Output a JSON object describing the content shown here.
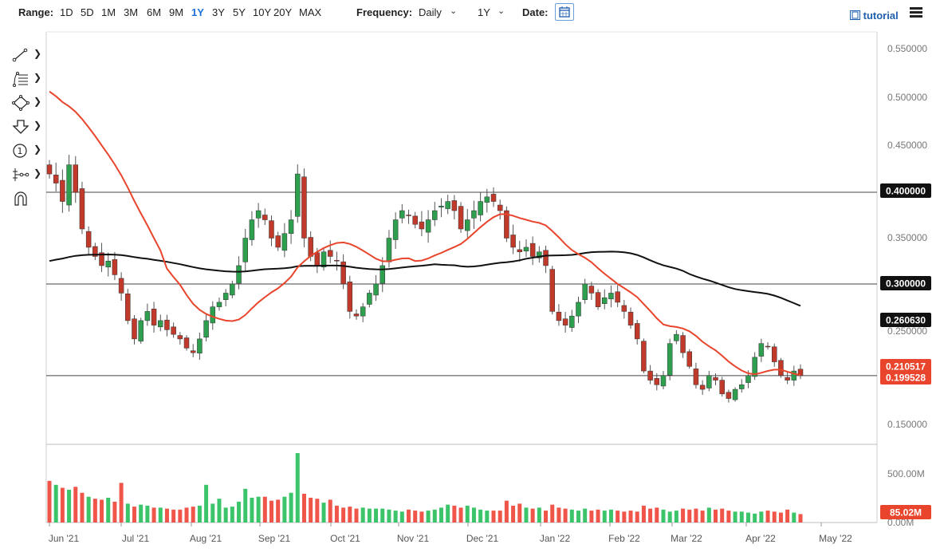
{
  "toolbar": {
    "range_label": "Range:",
    "ranges": [
      "1D",
      "5D",
      "1M",
      "3M",
      "6M",
      "9M",
      "1Y",
      "3Y",
      "5Y",
      "10Y",
      "20Y",
      "MAX"
    ],
    "active_range": "1Y",
    "frequency_label": "Frequency:",
    "frequency_value": "Daily",
    "period_value": "1Y",
    "date_label": "Date:",
    "tutorial_label": "tutorial",
    "accent_color": "#1e6fd9"
  },
  "drawing_tools": [
    {
      "name": "trend-line-icon"
    },
    {
      "name": "fibonacci-icon"
    },
    {
      "name": "shapes-icon"
    },
    {
      "name": "arrow-down-icon"
    },
    {
      "name": "annotation-icon"
    },
    {
      "name": "measure-icon"
    },
    {
      "name": "magnet-icon"
    }
  ],
  "chart_data": {
    "type": "candlestick",
    "x_ticks": [
      "Jun '21",
      "Jul '21",
      "Aug '21",
      "Sep '21",
      "Oct '21",
      "Nov '21",
      "Dec '21",
      "Jan '22",
      "Feb '22",
      "Mar '22",
      "Apr '22",
      "May '22"
    ],
    "price_ticks": [
      "0.550000",
      "0.500000",
      "0.450000",
      "0.400000",
      "0.350000",
      "0.300000",
      "0.250000",
      "0.150000"
    ],
    "price_range": [
      0.125,
      0.575
    ],
    "horizontal_levels": [
      0.4,
      0.3,
      0.2
    ],
    "level_labels": [
      "0.400000",
      "0.300000"
    ],
    "ma200_label": "0.260630",
    "ma50_label": "0.210517",
    "last_price_label": "0.199528",
    "ma200_color": "#111111",
    "ma50_color": "#e8452c",
    "up_color": "#2e9e4f",
    "down_color": "#c0392b",
    "closes": [
      0.42,
      0.41,
      0.39,
      0.43,
      0.4,
      0.36,
      0.34,
      0.33,
      0.32,
      0.325,
      0.31,
      0.29,
      0.26,
      0.24,
      0.26,
      0.27,
      0.255,
      0.26,
      0.25,
      0.245,
      0.24,
      0.23,
      0.225,
      0.24,
      0.26,
      0.275,
      0.28,
      0.29,
      0.3,
      0.32,
      0.35,
      0.37,
      0.38,
      0.37,
      0.35,
      0.34,
      0.355,
      0.37,
      0.42,
      0.35,
      0.33,
      0.32,
      0.335,
      0.33,
      0.325,
      0.3,
      0.27,
      0.265,
      0.275,
      0.29,
      0.3,
      0.32,
      0.35,
      0.37,
      0.38,
      0.375,
      0.365,
      0.36,
      0.37,
      0.38,
      0.385,
      0.39,
      0.38,
      0.36,
      0.37,
      0.38,
      0.39,
      0.395,
      0.39,
      0.38,
      0.35,
      0.34,
      0.335,
      0.34,
      0.33,
      0.335,
      0.32,
      0.27,
      0.26,
      0.255,
      0.265,
      0.28,
      0.3,
      0.29,
      0.275,
      0.285,
      0.29,
      0.28,
      0.27,
      0.255,
      0.24,
      0.205,
      0.195,
      0.19,
      0.2,
      0.235,
      0.245,
      0.225,
      0.21,
      0.19,
      0.185,
      0.2,
      0.195,
      0.18,
      0.175,
      0.185,
      0.19,
      0.2,
      0.22,
      0.235,
      0.232,
      0.215,
      0.2,
      0.195,
      0.205,
      0.2
    ],
    "volume_ticks": [
      "500.00M",
      "0.00M"
    ],
    "volume_max": 700,
    "volume_last_label": "85.02M",
    "volumes": [
      420,
      380,
      350,
      330,
      360,
      300,
      260,
      240,
      230,
      250,
      210,
      400,
      190,
      160,
      180,
      170,
      150,
      150,
      140,
      130,
      130,
      150,
      160,
      170,
      380,
      190,
      240,
      150,
      160,
      210,
      340,
      250,
      260,
      260,
      220,
      230,
      260,
      300,
      700,
      290,
      250,
      240,
      200,
      230,
      170,
      150,
      160,
      140,
      150,
      140,
      140,
      140,
      130,
      120,
      110,
      130,
      120,
      110,
      120,
      130,
      150,
      180,
      170,
      150,
      170,
      150,
      130,
      120,
      120,
      120,
      220,
      170,
      190,
      150,
      140,
      150,
      120,
      180,
      150,
      140,
      130,
      120,
      140,
      120,
      130,
      120,
      130,
      120,
      110,
      120,
      110,
      170,
      140,
      150,
      130,
      110,
      120,
      140,
      130,
      140,
      120,
      150,
      130,
      140,
      120,
      110,
      110,
      100,
      90,
      110,
      120,
      110,
      100,
      130,
      100,
      85
    ],
    "volume_up": [
      0,
      1,
      0,
      1,
      0,
      0,
      1,
      0,
      0,
      1,
      0,
      0,
      1,
      0,
      1,
      1,
      0,
      1,
      0,
      0,
      0,
      0,
      0,
      1,
      1,
      1,
      1,
      1,
      1,
      1,
      1,
      1,
      1,
      0,
      0,
      0,
      1,
      1,
      1,
      0,
      0,
      0,
      1,
      0,
      0,
      0,
      0,
      0,
      1,
      1,
      1,
      1,
      1,
      1,
      1,
      0,
      0,
      0,
      1,
      1,
      1,
      1,
      0,
      0,
      1,
      1,
      1,
      1,
      0,
      0,
      0,
      0,
      0,
      1,
      0,
      1,
      0,
      0,
      0,
      0,
      1,
      1,
      1,
      0,
      0,
      1,
      1,
      0,
      0,
      0,
      0,
      0,
      0,
      0,
      1,
      1,
      1,
      0,
      0,
      0,
      0,
      1,
      0,
      0,
      0,
      1,
      1,
      1,
      1,
      1,
      0,
      0,
      0,
      0,
      1,
      0
    ]
  }
}
